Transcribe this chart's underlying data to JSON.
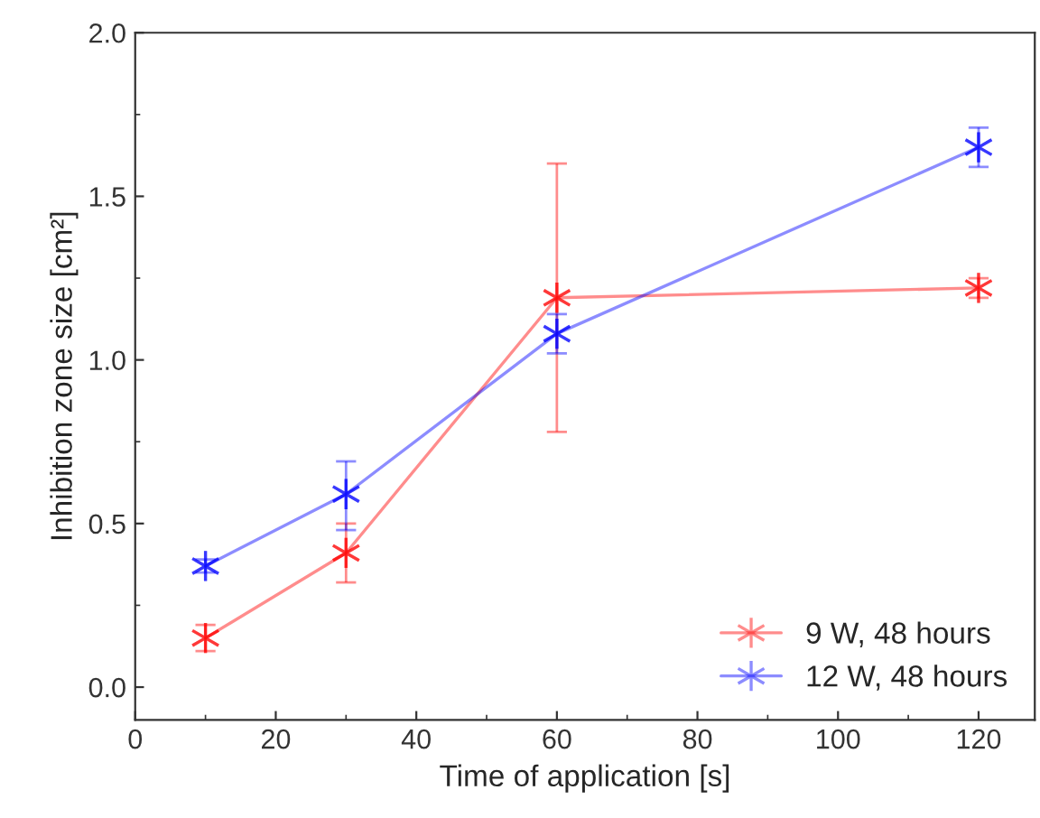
{
  "chart_data": {
    "type": "line",
    "xlabel": "Time of application [s]",
    "ylabel": "Inhibition zone size [cm²]",
    "xlim": [
      0,
      128
    ],
    "ylim": [
      -0.1,
      2.0
    ],
    "xticks": [
      0,
      20,
      40,
      60,
      80,
      100,
      120
    ],
    "yticks": [
      {
        "value": 0,
        "label": "0.0"
      },
      0.5,
      {
        "value": 1,
        "label": "1.0"
      },
      1.5,
      {
        "value": 2,
        "label": "2.0"
      }
    ],
    "x": [
      10,
      30,
      60,
      120
    ],
    "series": [
      {
        "name": "9 W, 48 hours",
        "color": "#ff0000",
        "values": [
          0.15,
          0.41,
          1.19,
          1.22
        ],
        "errors": [
          0.04,
          [
            0.32,
            0.5
          ],
          [
            0.78,
            1.6
          ],
          0.03
        ]
      },
      {
        "name": "12 W, 48 hours",
        "color": "#0000ff",
        "values": [
          0.37,
          0.59,
          1.08,
          1.65
        ],
        "errors": [
          0.02,
          [
            0.48,
            0.69
          ],
          [
            1.02,
            1.14
          ],
          [
            1.59,
            1.71
          ]
        ]
      }
    ],
    "marker": "cross",
    "line_style": "solid",
    "grid": false,
    "legend": "bottom right"
  }
}
